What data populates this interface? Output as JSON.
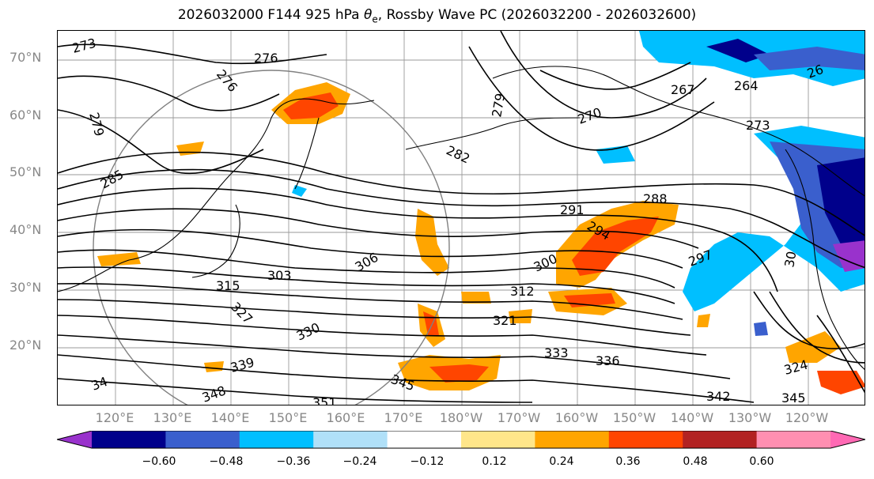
{
  "figure": {
    "title": "2026032000 F144 925 hPa θe, Rossby Wave PC (2026032200 - 2026032600)",
    "title_prefix": "2026032000 F144 925 hPa ",
    "title_symbol": "θ",
    "title_subscript": "e",
    "title_suffix": ", Rossby Wave PC (2026032200 - 2026032600)"
  },
  "map": {
    "extent": {
      "lon_min": 110,
      "lon_max": 250,
      "lat_min": 10,
      "lat_max": 75
    },
    "lat_labels": [
      "70°N",
      "60°N",
      "50°N",
      "40°N",
      "30°N",
      "20°N"
    ],
    "lon_labels": [
      "120°E",
      "130°E",
      "140°E",
      "150°E",
      "160°E",
      "170°E",
      "180°W",
      "170°W",
      "160°W",
      "150°W",
      "140°W",
      "130°W",
      "120°W"
    ],
    "contour_labels": [
      "273",
      "276",
      "276",
      "279",
      "279",
      "270",
      "267",
      "264",
      "26",
      "273",
      "282",
      "285",
      "288",
      "291",
      "294",
      "297",
      "300",
      "303",
      "306",
      "312",
      "315",
      "321",
      "327",
      "330",
      "333",
      "336",
      "339",
      "342",
      "345",
      "345",
      "348",
      "351",
      "324",
      "30",
      "34"
    ]
  },
  "colorbar": {
    "ticks": [
      "−0.60",
      "−0.48",
      "−0.36",
      "−0.24",
      "−0.12",
      "0.12",
      "0.24",
      "0.36",
      "0.48",
      "0.60"
    ],
    "colors": [
      "#9932cc",
      "#00008b",
      "#3a5fcd",
      "#00bfff",
      "#b0e0f8",
      "#ffffff",
      "#ffe68a",
      "#ffa500",
      "#ff4500",
      "#b22222",
      "#ff8fb1",
      "#ff69b4"
    ],
    "grid_color": "#999999",
    "contour_color": "#000000",
    "circle_color": "#808080"
  }
}
